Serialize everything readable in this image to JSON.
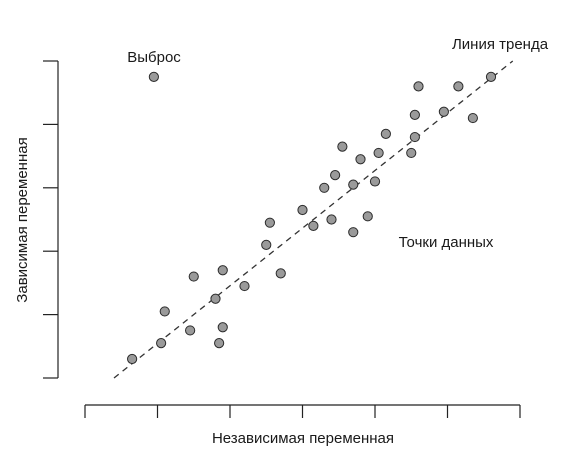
{
  "chart_data": {
    "type": "scatter",
    "title": "",
    "xlabel": "Независимая переменная",
    "ylabel": "Зависимая переменная",
    "xlim": [
      0,
      12
    ],
    "ylim": [
      0,
      10
    ],
    "x_ticks": [
      0,
      2,
      4,
      6,
      8,
      10,
      12
    ],
    "y_ticks": [
      0,
      2,
      4,
      6,
      8,
      10
    ],
    "tick_labels_shown": false,
    "grid": false,
    "point_color": "#9a9a9a",
    "point_stroke": "#2b2b2b",
    "trend_color": "#333333",
    "trend_line": {
      "x": [
        0.8,
        11.8
      ],
      "y": [
        0.0,
        10.0
      ]
    },
    "points": [
      {
        "x": 1.3,
        "y": 0.6
      },
      {
        "x": 2.1,
        "y": 1.1
      },
      {
        "x": 2.2,
        "y": 2.1
      },
      {
        "x": 2.9,
        "y": 1.5
      },
      {
        "x": 3.0,
        "y": 3.2
      },
      {
        "x": 3.6,
        "y": 2.5
      },
      {
        "x": 3.7,
        "y": 1.1
      },
      {
        "x": 3.8,
        "y": 1.6
      },
      {
        "x": 3.8,
        "y": 3.4
      },
      {
        "x": 4.4,
        "y": 2.9
      },
      {
        "x": 5.0,
        "y": 4.2
      },
      {
        "x": 5.1,
        "y": 4.9
      },
      {
        "x": 5.4,
        "y": 3.3
      },
      {
        "x": 6.0,
        "y": 5.3
      },
      {
        "x": 6.3,
        "y": 4.8
      },
      {
        "x": 6.6,
        "y": 6.0
      },
      {
        "x": 6.8,
        "y": 5.0
      },
      {
        "x": 6.9,
        "y": 6.4
      },
      {
        "x": 7.1,
        "y": 7.3
      },
      {
        "x": 7.4,
        "y": 6.1
      },
      {
        "x": 7.4,
        "y": 4.6
      },
      {
        "x": 7.6,
        "y": 6.9
      },
      {
        "x": 7.8,
        "y": 5.1
      },
      {
        "x": 8.0,
        "y": 6.2
      },
      {
        "x": 8.1,
        "y": 7.1
      },
      {
        "x": 8.3,
        "y": 7.7
      },
      {
        "x": 9.0,
        "y": 7.1
      },
      {
        "x": 9.1,
        "y": 7.6
      },
      {
        "x": 9.1,
        "y": 8.3
      },
      {
        "x": 9.2,
        "y": 9.2
      },
      {
        "x": 9.9,
        "y": 8.4
      },
      {
        "x": 10.3,
        "y": 9.2
      },
      {
        "x": 10.7,
        "y": 8.2
      },
      {
        "x": 11.2,
        "y": 9.5
      },
      {
        "x": 1.9,
        "y": 9.5
      }
    ],
    "annotations": {
      "outlier": "Выброс",
      "trend": "Линия тренда",
      "points": "Точки данных"
    }
  }
}
